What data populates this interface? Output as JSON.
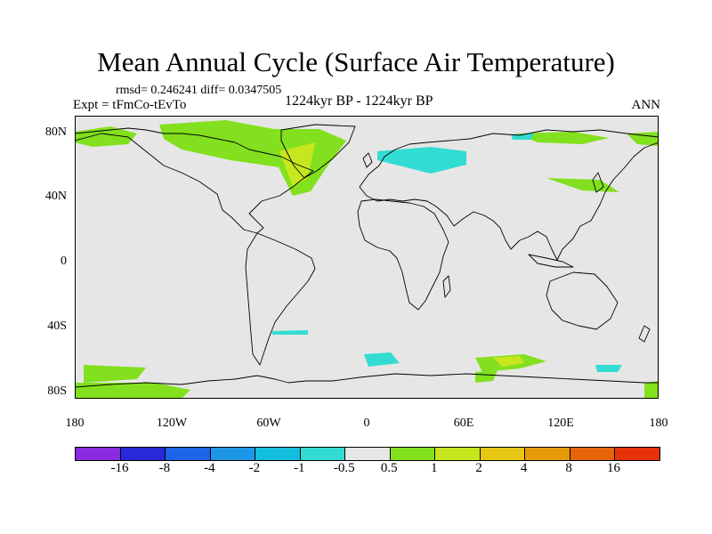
{
  "title": "Mean Annual Cycle (Surface Air Temperature)",
  "stats": "rmsd= 0.246241 diff= 0.0347505",
  "expt": "Expt = tFmCo-tEvTo",
  "period": "1224kyr BP - 1224kyr BP",
  "season": "ANN",
  "lat_labels": [
    "80N",
    "40N",
    "0",
    "40S",
    "80S"
  ],
  "lon_labels": [
    "180",
    "120W",
    "60W",
    "0",
    "60E",
    "120E",
    "180"
  ],
  "colorbar": {
    "colors": [
      "#8a2be2",
      "#2828d8",
      "#1e64e6",
      "#1e96e6",
      "#14bede",
      "#32dcd2",
      "#e6e6e6",
      "#82e01e",
      "#c8e61e",
      "#e6c814",
      "#e69a0a",
      "#e6640a",
      "#e6320a"
    ],
    "labels": [
      "-16",
      "-8",
      "-4",
      "-2",
      "-1",
      "-0.5",
      "0.5",
      "1",
      "2",
      "4",
      "8",
      "16"
    ]
  },
  "colors": {
    "ocean_background": "#e6e6e6",
    "coastline": "#000000"
  }
}
